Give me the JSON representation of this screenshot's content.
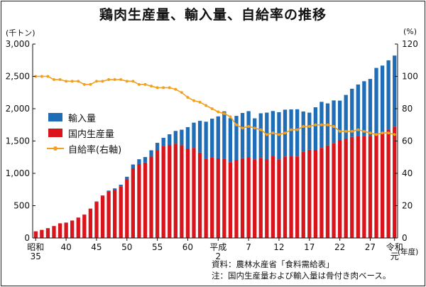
{
  "title": "鶏肉生産量、輸入量、自給率の推移",
  "unit_left": "(千トン)",
  "unit_right": "(%)",
  "unit_year": "(年度)",
  "notes": {
    "source": "資料：農林水産省「食料需給表」",
    "note": "注：国内生産量および輸入量は骨付き肉ベース。"
  },
  "colors": {
    "domestic": "#d9141b",
    "import": "#1f6db6",
    "rate": "#f2a01e"
  },
  "chart_data": {
    "type": "bar",
    "stacked": true,
    "x_start_year": 1960,
    "x_tick_labels": [
      {
        "year": 1960,
        "lines": [
          "昭和",
          "35"
        ]
      },
      {
        "year": 1965,
        "lines": [
          "40"
        ]
      },
      {
        "year": 1970,
        "lines": [
          "45"
        ]
      },
      {
        "year": 1975,
        "lines": [
          "50"
        ]
      },
      {
        "year": 1980,
        "lines": [
          "55"
        ]
      },
      {
        "year": 1985,
        "lines": [
          "60"
        ]
      },
      {
        "year": 1990,
        "lines": [
          "平成",
          "2"
        ]
      },
      {
        "year": 1995,
        "lines": [
          "7"
        ]
      },
      {
        "year": 2000,
        "lines": [
          "12"
        ]
      },
      {
        "year": 2005,
        "lines": [
          "17"
        ]
      },
      {
        "year": 2010,
        "lines": [
          "22"
        ]
      },
      {
        "year": 2015,
        "lines": [
          "27"
        ]
      },
      {
        "year": 2019,
        "lines": [
          "令和",
          "元"
        ]
      }
    ],
    "y_left": {
      "min": 0,
      "max": 3000,
      "ticks": [
        "0",
        "500",
        "1,000",
        "1,500",
        "2,000",
        "2,500",
        "3,000"
      ]
    },
    "y_right": {
      "min": 0,
      "max": 120,
      "ticks": [
        "0",
        "20",
        "40",
        "60",
        "80",
        "100",
        "120"
      ]
    },
    "series": [
      {
        "name": "国内生産量",
        "values": [
          103,
          125,
          152,
          185,
          227,
          238,
          270,
          315,
          361,
          450,
          559,
          648,
          719,
          742,
          799,
          907,
          1077,
          1143,
          1167,
          1259,
          1362,
          1424,
          1434,
          1460,
          1435,
          1385,
          1394,
          1322,
          1229,
          1246,
          1231,
          1229,
          1173,
          1209,
          1234,
          1252,
          1216,
          1239,
          1214,
          1264,
          1216,
          1260,
          1263,
          1262,
          1338,
          1364,
          1363,
          1394,
          1432,
          1469,
          1517,
          1533,
          1563,
          1581,
          1576,
          1579,
          1597,
          1624,
          1677,
          1723
        ]
      },
      {
        "name": "輸入量",
        "values": [
          0,
          0,
          0,
          0,
          0,
          0,
          0,
          2,
          3,
          5,
          7,
          10,
          14,
          25,
          25,
          40,
          60,
          75,
          85,
          98,
          110,
          125,
          170,
          196,
          240,
          330,
          390,
          490,
          570,
          600,
          650,
          730,
          680,
          680,
          700,
          710,
          635,
          690,
          725,
          700,
          730,
          725,
          726,
          729,
          619,
          575,
          659,
          712,
          650,
          659,
          608,
          680,
          746,
          793,
          849,
          881,
          1034,
          1043,
          1071,
          1099
        ]
      }
    ],
    "rate_series": {
      "name": "自給率(右軸)",
      "values": [
        100,
        100,
        100,
        98,
        98,
        97,
        97,
        97,
        95,
        95,
        97,
        97,
        98,
        98,
        98,
        97,
        97,
        95,
        95,
        94,
        93,
        93,
        93,
        92,
        90,
        87,
        85,
        84,
        82,
        80,
        78,
        77,
        75,
        70,
        68,
        69,
        68,
        67,
        64,
        65,
        64,
        65,
        67,
        67,
        69,
        69,
        70,
        70,
        70,
        69,
        66,
        66,
        66,
        67,
        66,
        65,
        64,
        65,
        65,
        64
      ]
    }
  }
}
